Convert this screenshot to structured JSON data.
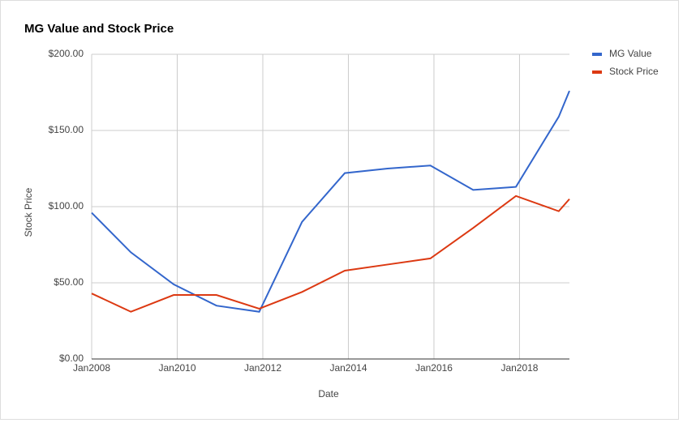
{
  "chart_data": {
    "type": "line",
    "title": "MG Value and Stock Price",
    "x_label": "Date",
    "y_label": "Stock Price",
    "x": [
      "2008-01",
      "2008-12",
      "2009-12",
      "2010-12",
      "2011-12",
      "2012-12",
      "2013-12",
      "2014-12",
      "2015-12",
      "2016-12",
      "2017-12",
      "2018-12",
      "2019-03"
    ],
    "series": [
      {
        "name": "MG Value",
        "color": "#3366cc",
        "values": [
          96,
          70,
          49,
          35,
          31,
          90,
          122,
          125,
          127,
          111,
          113,
          159,
          176
        ]
      },
      {
        "name": "Stock Price",
        "color": "#dc3912",
        "values": [
          43,
          31,
          42,
          42,
          33,
          44,
          58,
          62,
          66,
          86,
          107,
          97,
          105
        ]
      }
    ],
    "xlim": [
      "2008-01",
      "2019-03"
    ],
    "xticks": [
      {
        "value": "2008-01",
        "label": "Jan2008"
      },
      {
        "value": "2010-01",
        "label": "Jan2010"
      },
      {
        "value": "2012-01",
        "label": "Jan2012"
      },
      {
        "value": "2014-01",
        "label": "Jan2014"
      },
      {
        "value": "2016-01",
        "label": "Jan2016"
      },
      {
        "value": "2018-01",
        "label": "Jan2018"
      }
    ],
    "ylim": [
      0,
      200
    ],
    "yticks": [
      {
        "value": 0,
        "label": "$0.00"
      },
      {
        "value": 50,
        "label": "$50.00"
      },
      {
        "value": 100,
        "label": "$100.00"
      },
      {
        "value": 150,
        "label": "$150.00"
      },
      {
        "value": 200,
        "label": "$200.00"
      }
    ],
    "grid": true,
    "legend": "right"
  }
}
